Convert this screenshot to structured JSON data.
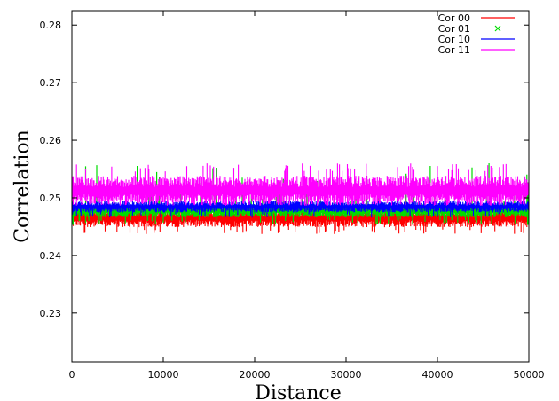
{
  "chart_data": {
    "type": "line",
    "xlabel": "Distance",
    "ylabel": "Correlation",
    "xlim": [
      0,
      50000
    ],
    "ylim": [
      0.2215,
      0.2825
    ],
    "x_ticks": [
      0,
      10000,
      20000,
      30000,
      40000,
      50000
    ],
    "x_tick_labels": [
      "0",
      "10000",
      "20000",
      "30000",
      "40000",
      "50000"
    ],
    "y_ticks": [
      0.23,
      0.24,
      0.25,
      0.26,
      0.27,
      0.28
    ],
    "y_tick_labels": [
      "0.23",
      "0.24",
      "0.25",
      "0.26",
      "0.27",
      "0.28"
    ],
    "grid": false,
    "legend_position": "top-right",
    "series": [
      {
        "name": "Cor 00",
        "color": "#ff0000",
        "style": "line",
        "mean": 0.2468,
        "band": [
          0.2445,
          0.2485
        ],
        "spike_min": 0.2437
      },
      {
        "name": "Cor 01",
        "color": "#00dd00",
        "style": "points",
        "marker": "x",
        "mean": 0.2478,
        "band": [
          0.2463,
          0.2492
        ],
        "spike_min": 0.2452,
        "spike_max": 0.2562
      },
      {
        "name": "Cor 10",
        "color": "#0000ff",
        "style": "line",
        "mean": 0.2483,
        "band": [
          0.2472,
          0.2497
        ],
        "spike_min": 0.2465
      },
      {
        "name": "Cor 11",
        "color": "#ff00ff",
        "style": "line",
        "mean": 0.2512,
        "band": [
          0.248,
          0.2545
        ],
        "spike_max": 0.256
      }
    ]
  }
}
